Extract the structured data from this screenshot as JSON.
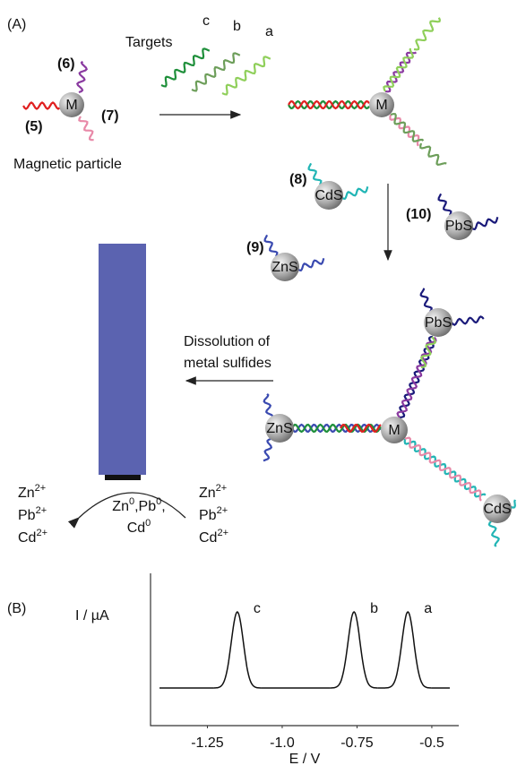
{
  "panel_a": {
    "label": "(A)",
    "targets": {
      "title": "Targets",
      "labels": [
        "c",
        "b",
        "a"
      ]
    },
    "particle": {
      "core": "M",
      "probes": [
        "(6)",
        "(5)",
        "(7)"
      ],
      "caption": "Magnetic particle"
    },
    "hybrid": {
      "core": "M"
    },
    "tags": [
      {
        "number": "(8)",
        "core": "CdS"
      },
      {
        "number": "(10)",
        "core": "PbS"
      },
      {
        "number": "(9)",
        "core": "ZnS"
      }
    ],
    "assembly": {
      "core": "M",
      "tags": [
        "PbS",
        "ZnS",
        "CdS"
      ]
    },
    "dissolution": [
      "Dissolution of",
      "metal sulfides"
    ],
    "ions_left": [
      {
        "symbol": "Zn",
        "charge": "2+"
      },
      {
        "symbol": "Pb",
        "charge": "2+"
      },
      {
        "symbol": "Cd",
        "charge": "2+"
      }
    ],
    "ions_right": [
      {
        "symbol": "Zn",
        "charge": "2+"
      },
      {
        "symbol": "Pb",
        "charge": "2+"
      },
      {
        "symbol": "Cd",
        "charge": "2+"
      }
    ],
    "deposit": {
      "items": [
        {
          "symbol": "Zn",
          "charge": "0"
        },
        {
          "symbol": "Pb",
          "charge": "0"
        },
        {
          "symbol": "Cd",
          "charge": "0"
        }
      ],
      "separator": ","
    }
  },
  "panel_b": {
    "label": "(B)"
  },
  "chart_data": {
    "type": "line",
    "ylabel": "I / µA",
    "xlabel": "E / V",
    "xlim": [
      -1.44,
      -0.41
    ],
    "xticks": [
      -1.25,
      {
        "value": -1,
        "label": "-1.0"
      },
      -0.75,
      -0.5
    ],
    "peaks": [
      {
        "label": "c",
        "x": -1.15
      },
      {
        "label": "b",
        "x": -0.76
      },
      {
        "label": "a",
        "x": -0.58
      }
    ]
  }
}
